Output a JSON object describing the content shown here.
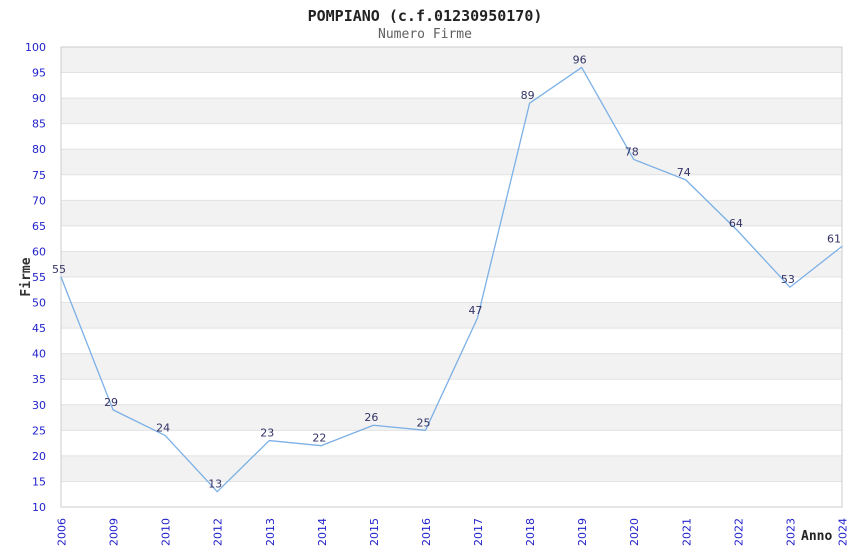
{
  "header": {
    "title": "POMPIANO (c.f.01230950170)",
    "subtitle": "Numero Firme"
  },
  "chart_data": {
    "type": "line",
    "title": "POMPIANO (c.f.01230950170)",
    "subtitle": "Numero Firme",
    "categories": [
      "2006",
      "2009",
      "2010",
      "2012",
      "2013",
      "2014",
      "2015",
      "2016",
      "2017",
      "2018",
      "2019",
      "2020",
      "2021",
      "2022",
      "2023",
      "2024"
    ],
    "values": [
      55,
      29,
      24,
      13,
      23,
      22,
      26,
      25,
      47,
      89,
      96,
      78,
      74,
      64,
      53,
      61
    ],
    "xlabel": "Anno",
    "ylabel": "Firme",
    "ylim": [
      10,
      100
    ],
    "ytick_step": 5,
    "yticks": [
      10,
      15,
      20,
      25,
      30,
      35,
      40,
      45,
      50,
      55,
      60,
      65,
      70,
      75,
      80,
      85,
      90,
      95,
      100
    ],
    "grid": true,
    "legend": "none",
    "colors": {
      "line": "#7cb0e6",
      "data_label": "#333366",
      "tick_label": "#2222cc",
      "band": "#f2f2f2",
      "grid": "#e2e2e2",
      "border": "#cccccc",
      "title": "#222222",
      "subtitle": "#5f5f5f",
      "axis_title": "#333333"
    }
  }
}
